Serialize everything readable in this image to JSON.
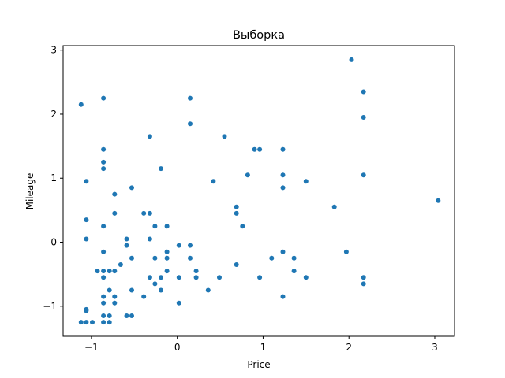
{
  "chart_data": {
    "type": "scatter",
    "title": "Выборка",
    "xlabel": "Price",
    "ylabel": "Mileage",
    "xlim": [
      -1.33,
      3.23
    ],
    "ylim": [
      -1.47,
      3.07
    ],
    "xticks": [
      -1,
      0,
      1,
      2,
      3
    ],
    "yticks": [
      -1,
      0,
      1,
      2,
      3
    ],
    "xtick_labels": [
      "−1",
      "0",
      "1",
      "2",
      "3"
    ],
    "ytick_labels": [
      "−1",
      "0",
      "1",
      "2",
      "3"
    ],
    "grid": false,
    "legend": "none",
    "point_color": "#1f77b4",
    "points": [
      [
        -1.12,
        2.15
      ],
      [
        -0.86,
        2.25
      ],
      [
        0.15,
        2.25
      ],
      [
        0.15,
        1.85
      ],
      [
        -0.32,
        1.65
      ],
      [
        0.55,
        1.65
      ],
      [
        -0.86,
        1.45
      ],
      [
        0.9,
        1.45
      ],
      [
        0.96,
        1.45
      ],
      [
        1.23,
        1.45
      ],
      [
        -0.86,
        1.25
      ],
      [
        -0.86,
        1.15
      ],
      [
        -0.19,
        1.15
      ],
      [
        0.82,
        1.05
      ],
      [
        1.23,
        1.05
      ],
      [
        -1.06,
        0.95
      ],
      [
        0.42,
        0.95
      ],
      [
        1.5,
        0.95
      ],
      [
        1.23,
        0.85
      ],
      [
        -0.53,
        0.85
      ],
      [
        -0.73,
        0.75
      ],
      [
        0.69,
        0.55
      ],
      [
        1.83,
        0.55
      ],
      [
        -0.73,
        0.45
      ],
      [
        -0.39,
        0.45
      ],
      [
        -0.32,
        0.45
      ],
      [
        0.69,
        0.45
      ],
      [
        -1.06,
        0.35
      ],
      [
        -0.86,
        0.25
      ],
      [
        -0.26,
        0.25
      ],
      [
        -0.12,
        0.25
      ],
      [
        0.76,
        0.25
      ],
      [
        -1.06,
        0.05
      ],
      [
        -0.59,
        0.05
      ],
      [
        -0.32,
        0.05
      ],
      [
        -0.59,
        -0.05
      ],
      [
        0.02,
        -0.05
      ],
      [
        0.15,
        -0.05
      ],
      [
        -0.86,
        -0.15
      ],
      [
        -0.12,
        -0.15
      ],
      [
        1.23,
        -0.15
      ],
      [
        1.97,
        -0.15
      ],
      [
        -0.53,
        -0.25
      ],
      [
        -0.26,
        -0.25
      ],
      [
        -0.12,
        -0.25
      ],
      [
        0.15,
        -0.25
      ],
      [
        1.1,
        -0.25
      ],
      [
        1.36,
        -0.25
      ],
      [
        -0.66,
        -0.35
      ],
      [
        0.69,
        -0.35
      ],
      [
        -0.93,
        -0.45
      ],
      [
        -0.86,
        -0.45
      ],
      [
        -0.79,
        -0.45
      ],
      [
        -0.73,
        -0.45
      ],
      [
        -0.12,
        -0.45
      ],
      [
        0.22,
        -0.45
      ],
      [
        1.36,
        -0.45
      ],
      [
        -0.86,
        -0.55
      ],
      [
        -0.32,
        -0.55
      ],
      [
        -0.19,
        -0.55
      ],
      [
        0.02,
        -0.55
      ],
      [
        0.22,
        -0.55
      ],
      [
        0.49,
        -0.55
      ],
      [
        0.96,
        -0.55
      ],
      [
        1.5,
        -0.55
      ],
      [
        2.17,
        -0.55
      ],
      [
        -0.26,
        -0.65
      ],
      [
        2.17,
        -0.65
      ],
      [
        -0.79,
        -0.75
      ],
      [
        -0.53,
        -0.75
      ],
      [
        -0.19,
        -0.75
      ],
      [
        0.36,
        -0.75
      ],
      [
        -0.86,
        -0.85
      ],
      [
        -0.73,
        -0.85
      ],
      [
        -0.39,
        -0.85
      ],
      [
        1.23,
        -0.85
      ],
      [
        -0.86,
        -0.95
      ],
      [
        -0.73,
        -0.95
      ],
      [
        0.02,
        -0.95
      ],
      [
        -1.06,
        -1.05
      ],
      [
        -1.06,
        -1.07
      ],
      [
        -0.86,
        -1.15
      ],
      [
        -0.79,
        -1.15
      ],
      [
        -0.59,
        -1.15
      ],
      [
        -0.53,
        -1.15
      ],
      [
        -1.12,
        -1.25
      ],
      [
        -1.06,
        -1.25
      ],
      [
        -0.99,
        -1.25
      ],
      [
        -0.86,
        -1.25
      ],
      [
        -0.79,
        -1.25
      ],
      [
        2.03,
        2.85
      ],
      [
        2.17,
        2.35
      ],
      [
        2.17,
        1.95
      ],
      [
        2.17,
        1.05
      ],
      [
        3.04,
        0.65
      ]
    ]
  }
}
